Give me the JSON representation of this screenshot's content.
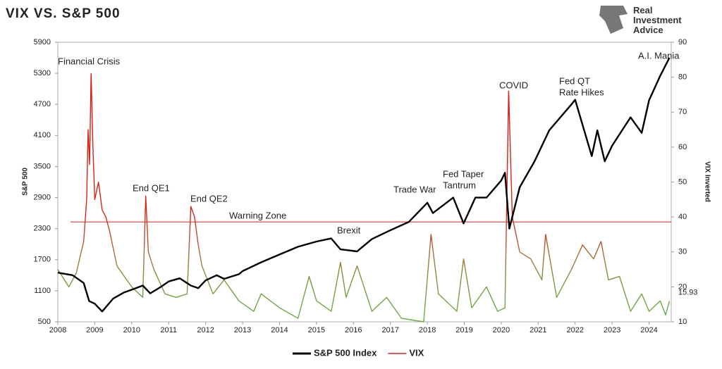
{
  "chart_data": {
    "type": "line",
    "title": "VIX VS. S&P 500",
    "logo": [
      "Real",
      "Investment",
      "Advice"
    ],
    "y_label": "S&P 500",
    "y2_label": "VIX Inverted",
    "xlim": [
      2008,
      2024.6
    ],
    "xticks": [
      2008,
      2009,
      2010,
      2011,
      2012,
      2013,
      2014,
      2015,
      2016,
      2017,
      2018,
      2019,
      2020,
      2021,
      2022,
      2023,
      2024
    ],
    "ylim": [
      500,
      5900
    ],
    "yticks": [
      500,
      1100,
      1700,
      2300,
      2900,
      3500,
      4100,
      4700,
      5300,
      5900
    ],
    "y2lim": [
      10,
      90
    ],
    "y2ticks": [
      10,
      20,
      30,
      40,
      50,
      60,
      70,
      80,
      90
    ],
    "series": [
      {
        "name": "S&P 500 Index",
        "color": "#000000",
        "x": [
          2008.0,
          2008.4,
          2008.7,
          2008.85,
          2009.0,
          2009.2,
          2009.5,
          2009.8,
          2010.0,
          2010.3,
          2010.5,
          2010.8,
          2011.0,
          2011.3,
          2011.6,
          2011.8,
          2012.0,
          2012.3,
          2012.5,
          2012.9,
          2013.0,
          2013.5,
          2014.0,
          2014.5,
          2015.0,
          2015.4,
          2015.65,
          2016.1,
          2016.5,
          2017.0,
          2017.5,
          2018.0,
          2018.15,
          2018.7,
          2018.98,
          2019.3,
          2019.6,
          2020.0,
          2020.1,
          2020.22,
          2020.5,
          2020.9,
          2021.3,
          2021.9,
          2022.0,
          2022.45,
          2022.6,
          2022.8,
          2023.0,
          2023.5,
          2023.8,
          2024.0,
          2024.3,
          2024.55
        ],
        "values": [
          1450,
          1400,
          1250,
          900,
          850,
          700,
          950,
          1070,
          1120,
          1200,
          1050,
          1180,
          1280,
          1340,
          1200,
          1150,
          1300,
          1400,
          1330,
          1420,
          1480,
          1650,
          1800,
          1950,
          2050,
          2110,
          1900,
          1860,
          2100,
          2270,
          2430,
          2800,
          2600,
          2900,
          2400,
          2900,
          2900,
          3230,
          3380,
          2300,
          3100,
          3600,
          4200,
          4700,
          4790,
          3700,
          4200,
          3600,
          3900,
          4450,
          4150,
          4780,
          5250,
          5600
        ]
      },
      {
        "name": "VIX",
        "color": "#d62020",
        "axis": "y2",
        "x": [
          2008.0,
          2008.3,
          2008.5,
          2008.7,
          2008.78,
          2008.82,
          2008.86,
          2008.9,
          2008.95,
          2009.0,
          2009.1,
          2009.2,
          2009.3,
          2009.4,
          2009.6,
          2009.8,
          2010.0,
          2010.3,
          2010.38,
          2010.45,
          2010.6,
          2010.9,
          2011.2,
          2011.5,
          2011.6,
          2011.7,
          2011.8,
          2011.9,
          2012.2,
          2012.5,
          2012.9,
          2013.3,
          2013.5,
          2014.0,
          2014.5,
          2014.8,
          2015.0,
          2015.4,
          2015.65,
          2015.8,
          2016.1,
          2016.5,
          2016.9,
          2017.3,
          2017.9,
          2018.1,
          2018.3,
          2018.8,
          2018.98,
          2019.2,
          2019.6,
          2019.9,
          2020.1,
          2020.2,
          2020.3,
          2020.5,
          2020.8,
          2021.1,
          2021.2,
          2021.5,
          2021.9,
          2022.2,
          2022.5,
          2022.7,
          2022.9,
          2023.2,
          2023.5,
          2023.8,
          2024.0,
          2024.3,
          2024.45,
          2024.55
        ],
        "values": [
          25,
          20,
          24,
          33,
          45,
          65,
          55,
          81,
          60,
          45,
          50,
          42,
          40,
          36,
          26,
          23,
          20,
          17,
          46,
          30,
          25,
          18,
          17,
          18,
          43,
          40,
          32,
          26,
          18,
          22,
          16,
          13,
          18,
          14,
          11,
          23,
          16,
          13,
          27,
          17,
          26,
          13,
          17,
          11,
          10,
          35,
          18,
          13,
          28,
          14,
          20,
          13,
          14,
          76,
          40,
          30,
          28,
          22,
          35,
          17,
          25,
          32,
          28,
          33,
          22,
          23,
          13,
          18,
          13,
          16,
          12,
          15.93
        ]
      }
    ],
    "warning_zone": {
      "label": "Warning Zone",
      "value": 38.6,
      "color": "#d62020"
    },
    "annotations": [
      [
        "Financial Crisis"
      ],
      [
        "End QE1"
      ],
      [
        "End QE2"
      ],
      [
        "Brexit"
      ],
      [
        "Trade War"
      ],
      [
        "Fed Taper",
        "Tantrum"
      ],
      [
        "COVID"
      ],
      [
        "Fed QT",
        "Rate Hikes"
      ],
      [
        "A.I. Mania"
      ]
    ]
  }
}
